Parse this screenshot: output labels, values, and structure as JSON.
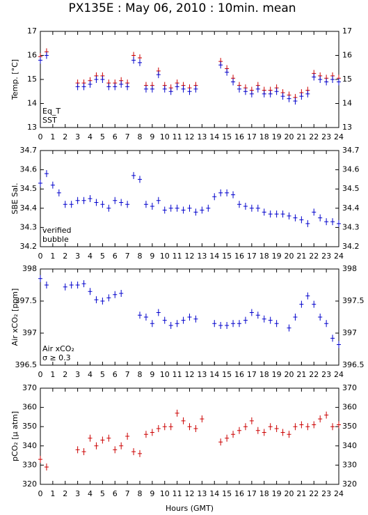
{
  "chart_data": [
    {
      "type": "scatter",
      "title": "PX135E : May 06, 2010 : 10min. mean",
      "y_label": "Temp. [°C]",
      "x": [
        0,
        0.5,
        1,
        1.5,
        2,
        2.5,
        3,
        3.5,
        4,
        4.5,
        5,
        5.5,
        6,
        6.5,
        7,
        7.5,
        8,
        8.5,
        9,
        9.5,
        10,
        10.5,
        11,
        11.5,
        12,
        12.5,
        13,
        13.5,
        14,
        14.5,
        15,
        15.5,
        16,
        16.5,
        17,
        17.5,
        18,
        18.5,
        19,
        19.5,
        20,
        20.5,
        21,
        21.5,
        22,
        22.5,
        23,
        23.5,
        24
      ],
      "series": [
        {
          "name": "Eq_T",
          "color": "#cc0000",
          "values": [
            15.95,
            16.15,
            null,
            null,
            null,
            null,
            14.85,
            14.85,
            14.95,
            15.15,
            15.15,
            14.85,
            14.85,
            14.95,
            14.85,
            16.0,
            15.9,
            14.75,
            14.75,
            15.35,
            14.75,
            14.65,
            14.85,
            14.75,
            14.65,
            14.75,
            null,
            null,
            null,
            15.75,
            15.45,
            15.05,
            14.75,
            14.65,
            14.55,
            14.75,
            14.55,
            14.55,
            14.65,
            14.45,
            14.35,
            14.25,
            14.45,
            14.55,
            15.25,
            15.15,
            15.05,
            15.15,
            15.05
          ]
        },
        {
          "name": "SST",
          "color": "#0000cc",
          "values": [
            15.8,
            16.0,
            null,
            null,
            null,
            null,
            14.7,
            14.7,
            14.8,
            15.0,
            15.0,
            14.7,
            14.7,
            14.8,
            14.7,
            15.8,
            15.7,
            14.6,
            14.6,
            15.2,
            14.6,
            14.5,
            14.7,
            14.6,
            14.5,
            14.6,
            null,
            null,
            null,
            15.6,
            15.3,
            14.9,
            14.6,
            14.5,
            14.4,
            14.6,
            14.4,
            14.4,
            14.5,
            14.3,
            14.2,
            14.1,
            14.3,
            14.4,
            15.1,
            15.0,
            14.9,
            15.0,
            14.9
          ]
        }
      ],
      "xlim": [
        0,
        24
      ],
      "xticks": [
        0,
        1,
        2,
        3,
        4,
        5,
        6,
        7,
        8,
        9,
        10,
        11,
        12,
        13,
        14,
        15,
        16,
        17,
        18,
        19,
        20,
        21,
        22,
        23,
        24
      ],
      "ylim": [
        13,
        17
      ],
      "yticks": [
        13,
        14,
        15,
        16,
        17
      ]
    },
    {
      "type": "scatter",
      "y_label": "SBE Sal.",
      "x": [
        0,
        0.5,
        1,
        1.5,
        2,
        2.5,
        3,
        3.5,
        4,
        4.5,
        5,
        5.5,
        6,
        6.5,
        7,
        7.5,
        8,
        8.5,
        9,
        9.5,
        10,
        10.5,
        11,
        11.5,
        12,
        12.5,
        13,
        13.5,
        14,
        14.5,
        15,
        15.5,
        16,
        16.5,
        17,
        17.5,
        18,
        18.5,
        19,
        19.5,
        20,
        20.5,
        21,
        21.5,
        22,
        22.5,
        23,
        23.5,
        24
      ],
      "series": [
        {
          "name": "verified",
          "color": "#0000cc",
          "values": [
            34.53,
            34.58,
            34.52,
            34.48,
            34.42,
            34.42,
            34.44,
            34.44,
            34.45,
            34.43,
            34.42,
            34.4,
            34.44,
            34.43,
            34.42,
            34.57,
            34.55,
            34.42,
            34.41,
            34.44,
            34.39,
            34.4,
            34.4,
            34.39,
            34.4,
            34.38,
            34.39,
            34.4,
            34.46,
            34.48,
            34.48,
            34.47,
            34.42,
            34.41,
            34.4,
            34.4,
            34.38,
            34.37,
            34.37,
            34.37,
            34.36,
            34.35,
            34.34,
            34.32,
            34.38,
            34.35,
            34.33,
            34.33,
            34.32
          ]
        }
      ],
      "annotations": [
        {
          "text": "bubble",
          "color": "#cc00cc"
        }
      ],
      "xlim": [
        0,
        24
      ],
      "xticks": [
        0,
        1,
        2,
        3,
        4,
        5,
        6,
        7,
        8,
        9,
        10,
        11,
        12,
        13,
        14,
        15,
        16,
        17,
        18,
        19,
        20,
        21,
        22,
        23,
        24
      ],
      "ylim": [
        34.2,
        34.7
      ],
      "yticks": [
        34.2,
        34.3,
        34.4,
        34.5,
        34.6,
        34.7
      ]
    },
    {
      "type": "scatter",
      "y_label": "Air xCO₂ [ppm]",
      "x": [
        0,
        0.5,
        1,
        1.5,
        2,
        2.5,
        3,
        3.5,
        4,
        4.5,
        5,
        5.5,
        6,
        6.5,
        7,
        7.5,
        8,
        8.5,
        9,
        9.5,
        10,
        10.5,
        11,
        11.5,
        12,
        12.5,
        13,
        13.5,
        14,
        14.5,
        15,
        15.5,
        16,
        16.5,
        17,
        17.5,
        18,
        18.5,
        19,
        19.5,
        20,
        20.5,
        21,
        21.5,
        22,
        22.5,
        23,
        23.5,
        24
      ],
      "series": [
        {
          "name": "Air xCO₂",
          "color": "#0000cc",
          "values": [
            397.85,
            397.75,
            null,
            null,
            397.72,
            397.75,
            397.75,
            397.77,
            397.65,
            397.52,
            397.5,
            397.55,
            397.6,
            397.62,
            null,
            null,
            397.28,
            397.25,
            397.15,
            397.32,
            397.2,
            397.12,
            397.15,
            397.2,
            397.25,
            397.22,
            null,
            null,
            397.15,
            397.12,
            397.12,
            397.15,
            397.15,
            397.2,
            397.32,
            397.28,
            397.22,
            397.2,
            397.15,
            null,
            397.08,
            397.25,
            397.45,
            397.58,
            397.45,
            397.25,
            397.15,
            396.92,
            396.82
          ]
        }
      ],
      "annotations": [
        {
          "text": "σ ≥ 0.3",
          "color": "#cc00cc"
        }
      ],
      "xlim": [
        0,
        24
      ],
      "xticks": [
        0,
        1,
        2,
        3,
        4,
        5,
        6,
        7,
        8,
        9,
        10,
        11,
        12,
        13,
        14,
        15,
        16,
        17,
        18,
        19,
        20,
        21,
        22,
        23,
        24
      ],
      "ylim": [
        396.5,
        398
      ],
      "yticks": [
        396.5,
        397,
        397.5,
        398
      ]
    },
    {
      "type": "scatter",
      "y_label": "pCO₂ [μ atm]",
      "x_label": "Hours (GMT)",
      "x": [
        0,
        0.5,
        1,
        1.5,
        2,
        2.5,
        3,
        3.5,
        4,
        4.5,
        5,
        5.5,
        6,
        6.5,
        7,
        7.5,
        8,
        8.5,
        9,
        9.5,
        10,
        10.5,
        11,
        11.5,
        12,
        12.5,
        13,
        13.5,
        14,
        14.5,
        15,
        15.5,
        16,
        16.5,
        17,
        17.5,
        18,
        18.5,
        19,
        19.5,
        20,
        20.5,
        21,
        21.5,
        22,
        22.5,
        23,
        23.5,
        24
      ],
      "series": [
        {
          "name": "pCO₂",
          "color": "#cc0000",
          "values": [
            333,
            329,
            null,
            null,
            null,
            null,
            338,
            337,
            344,
            340,
            343,
            344,
            338,
            340,
            345,
            337,
            336,
            346,
            347,
            349,
            350,
            350,
            357,
            353,
            350,
            349,
            354,
            null,
            null,
            342,
            344,
            346,
            348,
            350,
            353,
            348,
            347,
            350,
            349,
            347,
            346,
            350,
            351,
            350,
            351,
            354,
            356,
            350,
            351
          ]
        }
      ],
      "xlim": [
        0,
        24
      ],
      "xticks": [
        0,
        1,
        2,
        3,
        4,
        5,
        6,
        7,
        8,
        9,
        10,
        11,
        12,
        13,
        14,
        15,
        16,
        17,
        18,
        19,
        20,
        21,
        22,
        23,
        24
      ],
      "ylim": [
        320,
        370
      ],
      "yticks": [
        320,
        330,
        340,
        350,
        360,
        370
      ]
    }
  ]
}
